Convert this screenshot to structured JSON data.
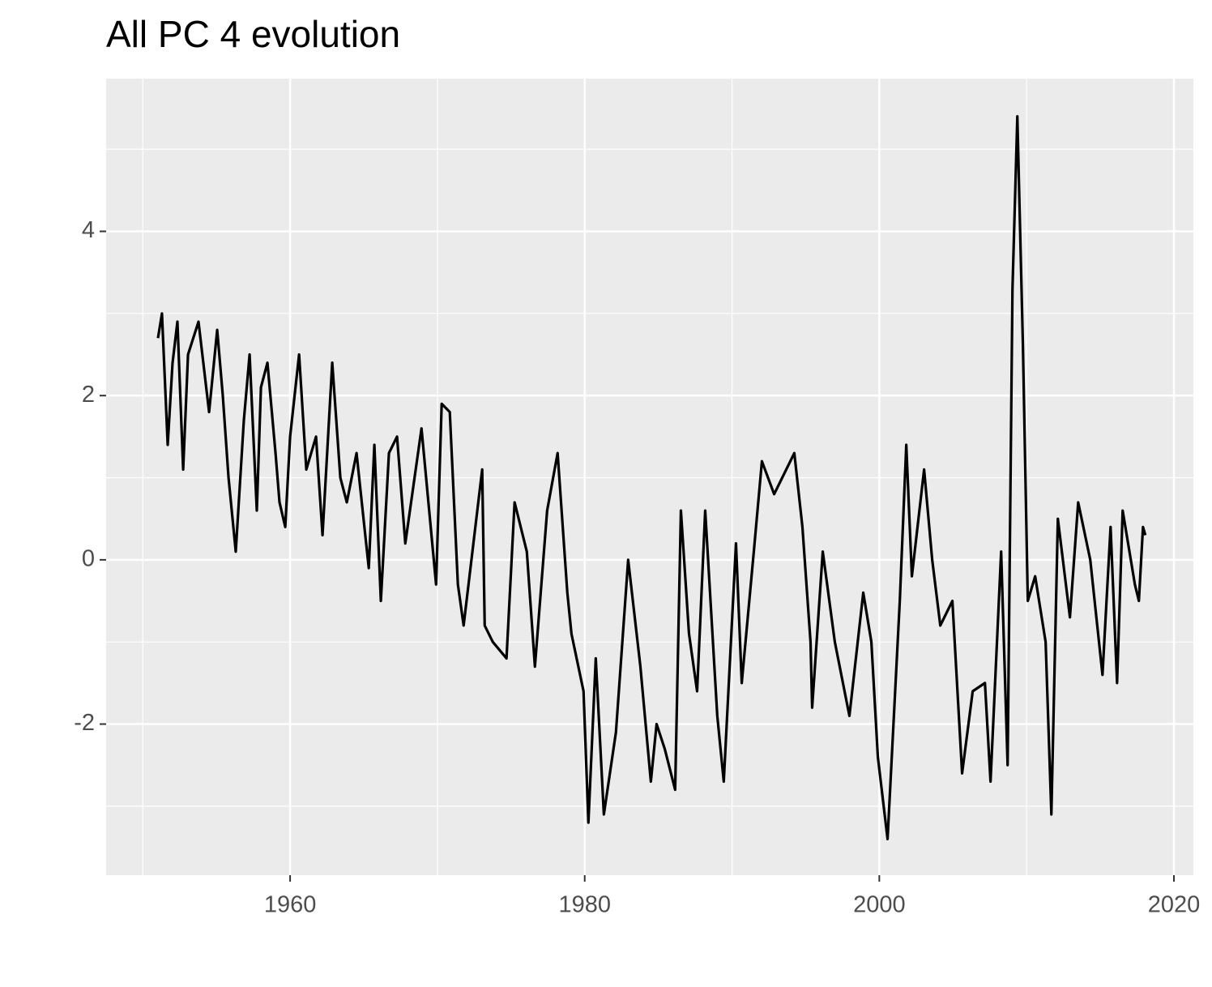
{
  "chart_data": {
    "type": "line",
    "title": "All PC 4 evolution",
    "x": [
      1951.03,
      1951.3,
      1951.69,
      1952.02,
      1952.35,
      1952.74,
      1953.07,
      1953.78,
      1954.5,
      1955.05,
      1955.43,
      1955.82,
      1956.31,
      1956.86,
      1957.25,
      1957.74,
      1958.02,
      1958.46,
      1959.01,
      1959.28,
      1959.67,
      1960.0,
      1960.61,
      1961.1,
      1961.76,
      1962.2,
      1962.86,
      1963.41,
      1963.85,
      1964.51,
      1965.34,
      1965.72,
      1966.16,
      1966.71,
      1967.26,
      1967.82,
      1968.92,
      1969.91,
      1970.29,
      1970.84,
      1971.39,
      1971.78,
      1973.04,
      1973.21,
      1973.76,
      1974.69,
      1975.24,
      1976.07,
      1976.62,
      1977.45,
      1978.16,
      1978.82,
      1979.1,
      1979.92,
      1980.25,
      1980.75,
      1981.3,
      1982.12,
      1982.95,
      1983.78,
      1984.49,
      1984.88,
      1985.43,
      1986.14,
      1986.53,
      1987.08,
      1987.63,
      1988.18,
      1989.0,
      1989.44,
      1990.27,
      1990.66,
      1991.48,
      1992.03,
      1992.86,
      1994.23,
      1994.78,
      1995.33,
      1995.44,
      1996.16,
      1996.98,
      1997.97,
      1998.91,
      1999.46,
      1999.9,
      2000.56,
      2001.39,
      2001.83,
      2002.21,
      2003.04,
      2003.59,
      2004.14,
      2004.96,
      2005.62,
      2006.34,
      2007.17,
      2007.55,
      2008.27,
      2008.71,
      2009.04,
      2009.37,
      2009.75,
      2010.08,
      2010.58,
      2011.29,
      2011.68,
      2012.12,
      2012.94,
      2013.5,
      2014.32,
      2015.15,
      2015.7,
      2016.14,
      2016.52,
      2017.35,
      2017.62,
      2017.9,
      2018.06
    ],
    "series": [
      {
        "color": "#000000",
        "values": [
          2.7,
          3.0,
          1.4,
          2.4,
          2.9,
          1.1,
          2.5,
          2.9,
          1.8,
          2.8,
          2.0,
          1.0,
          0.1,
          1.7,
          2.5,
          0.6,
          2.1,
          2.4,
          1.3,
          0.7,
          0.4,
          1.5,
          2.5,
          1.1,
          1.5,
          0.3,
          2.4,
          1.0,
          0.7,
          1.3,
          -0.1,
          1.4,
          -0.5,
          1.3,
          1.5,
          0.2,
          1.6,
          -0.3,
          1.9,
          1.8,
          -0.3,
          -0.8,
          1.1,
          -0.8,
          -1.0,
          -1.2,
          0.7,
          0.1,
          -1.3,
          0.6,
          1.3,
          -0.4,
          -0.9,
          -1.6,
          -3.2,
          -1.2,
          -3.1,
          -2.1,
          0.0,
          -1.3,
          -2.7,
          -2.0,
          -2.3,
          -2.8,
          0.6,
          -0.9,
          -1.6,
          0.6,
          -1.9,
          -2.7,
          0.2,
          -1.5,
          0.1,
          1.2,
          0.8,
          1.3,
          0.4,
          -1.0,
          -1.8,
          0.1,
          -1.0,
          -1.9,
          -0.4,
          -1.0,
          -2.4,
          -3.4,
          -0.5,
          1.4,
          -0.2,
          1.1,
          0.0,
          -0.8,
          -0.5,
          -2.6,
          -1.6,
          -1.5,
          -2.7,
          0.1,
          -2.5,
          3.3,
          5.4,
          2.6,
          -0.5,
          -0.2,
          -1.0,
          -3.1,
          0.5,
          -0.7,
          0.7,
          0.0,
          -1.4,
          0.4,
          -1.5,
          0.6,
          -0.3,
          -0.5,
          0.4,
          0.3
        ]
      }
    ],
    "xlim": [
      1947.51,
      2021.32
    ],
    "xticks": [
      1960,
      1980,
      2000,
      2020
    ],
    "ylim": [
      -3.84,
      5.86
    ],
    "yticks": [
      -2,
      0,
      2,
      4
    ],
    "minor_xticks": [
      1950,
      1970,
      1990,
      2010
    ],
    "minor_yticks": [
      -3,
      -1,
      1,
      3,
      5
    ],
    "grid": true,
    "background": "#ebebeb"
  }
}
